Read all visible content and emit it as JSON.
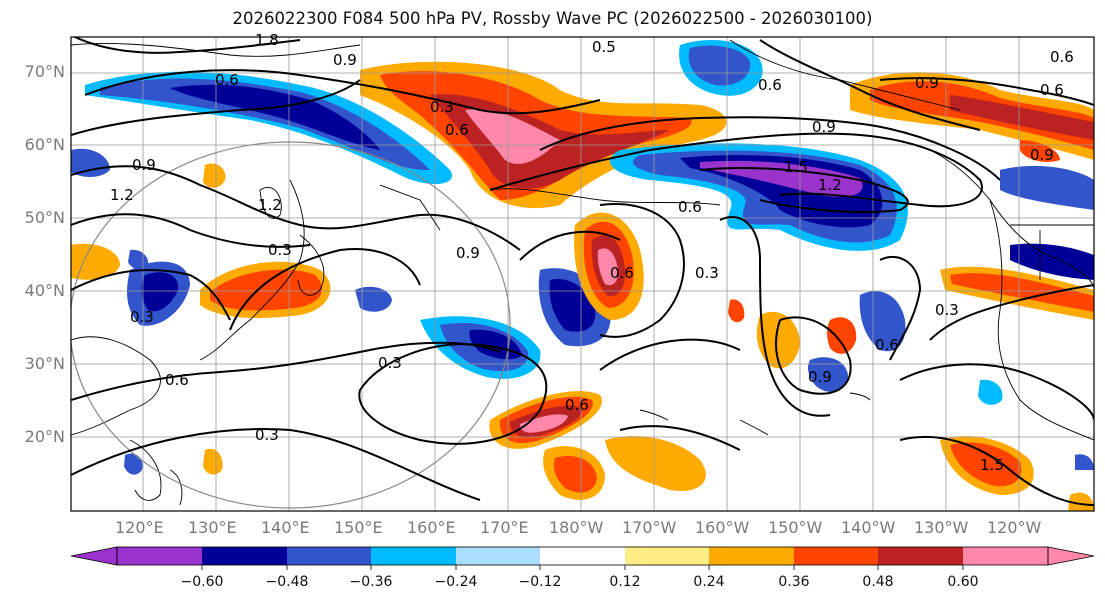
{
  "title": "2026022300 F084 500 hPa PV, Rossby Wave PC (2026022500 - 2026030100)",
  "lat_labels": [
    "70°N",
    "60°N",
    "50°N",
    "40°N",
    "30°N",
    "20°N"
  ],
  "lon_labels": [
    "120°E",
    "130°E",
    "140°E",
    "150°E",
    "160°E",
    "170°E",
    "180°W",
    "170°W",
    "160°W",
    "150°W",
    "140°W",
    "130°W",
    "120°W"
  ],
  "colorbar": {
    "tick_labels": [
      "−0.60",
      "−0.48",
      "−0.36",
      "−0.24",
      "−0.12",
      "0.12",
      "0.24",
      "0.36",
      "0.48",
      "0.60"
    ],
    "colors": [
      "#9933cc",
      "#000099",
      "#3355cc",
      "#00bbff",
      "#aaddff",
      "#ffffff",
      "#ffee88",
      "#ffaa00",
      "#ff4400",
      "#bb2222",
      "#ff88aa"
    ]
  },
  "contour_labels": [
    "1.8",
    "1.5",
    "0.9",
    "0.6",
    "0.3",
    "0.6",
    "1.2",
    "0.9",
    "1.2",
    "0.3",
    "0.9",
    "0.3",
    "0.6",
    "0.3",
    "0.9",
    "0.6",
    "0.3",
    "0.6",
    "0.9",
    "0.6",
    "0.9",
    "1.5",
    "1.2",
    "0.9",
    "0.6",
    "0.6",
    "0.3",
    "0.6",
    "0.3",
    "0.6",
    "0.5"
  ]
}
